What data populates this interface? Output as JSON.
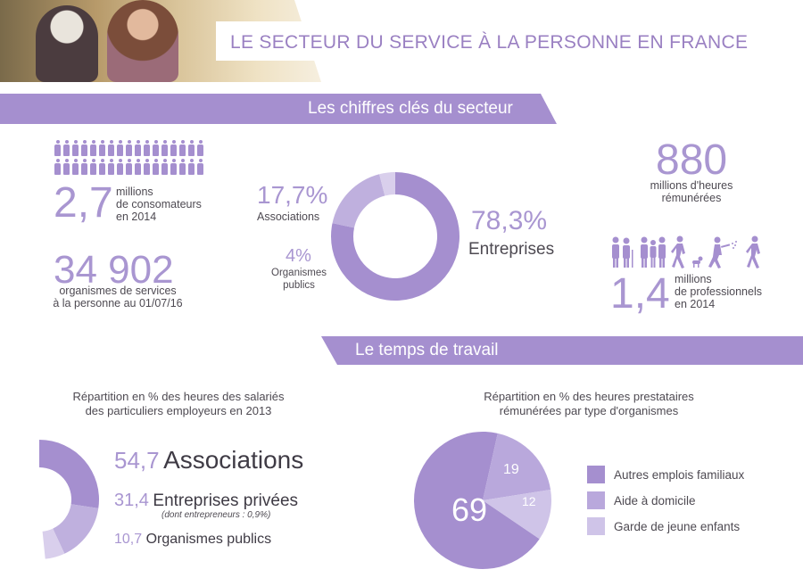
{
  "header": {
    "title": "LE SECTEUR DU SERVICE À LA PERSONNE EN FRANCE"
  },
  "section1": {
    "title": "Les chiffres clés du secteur"
  },
  "consommateurs": {
    "value": "2,7",
    "line1": "millions",
    "line2": "de consomateurs",
    "line3": "en 2014"
  },
  "organismes": {
    "value": "34 902",
    "line1": "organismes de services",
    "line2": "à la personne au 01/07/16"
  },
  "donut1": {
    "associations": {
      "value": "17,7%",
      "label": "Associations"
    },
    "organismes_publics": {
      "value": "4%",
      "label1": "Organismes",
      "label2": "publics"
    },
    "entreprises": {
      "value": "78,3%",
      "label": "Entreprises"
    }
  },
  "heures": {
    "value": "880",
    "line1": "millions d'heures",
    "line2": "rémunérées"
  },
  "professionnels": {
    "value": "1,4",
    "line1": "millions",
    "line2": "de professionnels",
    "line3": "en 2014"
  },
  "section2": {
    "title": "Le temps de travail"
  },
  "chart_left": {
    "caption1": "Répartition en % des heures des salariés",
    "caption2": "des particuliers employeurs en 2013",
    "items": [
      {
        "value": "54,7",
        "label": "Associations"
      },
      {
        "value": "31,4",
        "label": "Entreprises privées",
        "note": "(dont entrepreneurs : 0,9%)"
      },
      {
        "value": "10,7",
        "label": "Organismes publics"
      }
    ]
  },
  "chart_right": {
    "caption1": "Répartition en % des heures prestataires",
    "caption2": "rémunérées par type d'organismes",
    "slices": [
      "69",
      "19",
      "12"
    ],
    "legend": [
      "Autres emplois familiaux",
      "Aide à domicile",
      "Garde de jeune enfants"
    ]
  },
  "chart_data": [
    {
      "type": "pie",
      "categories": [
        "Entreprises",
        "Associations",
        "Organismes publics"
      ],
      "values": [
        78.3,
        17.7,
        4
      ],
      "colors": [
        "#a58fcf",
        "#bfb0de",
        "#d9cfec"
      ]
    },
    {
      "type": "pie",
      "categories": [
        "Associations",
        "Entreprises privées",
        "Organismes publics"
      ],
      "values": [
        54.7,
        31.4,
        10.7
      ],
      "colors": [
        "#a58fcf",
        "#bfb0de",
        "#d9cfec"
      ]
    },
    {
      "type": "pie",
      "categories": [
        "Autres emplois familiaux",
        "Aide à domicile",
        "Garde de jeune enfants"
      ],
      "values": [
        69,
        19,
        12
      ],
      "colors": [
        "#a58fcf",
        "#b9a8dc",
        "#cfc4e8"
      ]
    }
  ],
  "colors": {
    "accent": "#a58fcf",
    "light": "#bfb0de",
    "lighter": "#d9cfec",
    "title": "#9a80c2"
  },
  "icons": [
    "people-icon",
    "elderly-care-icon",
    "dog-walker-icon",
    "gardener-icon",
    "walking-person-icon"
  ]
}
